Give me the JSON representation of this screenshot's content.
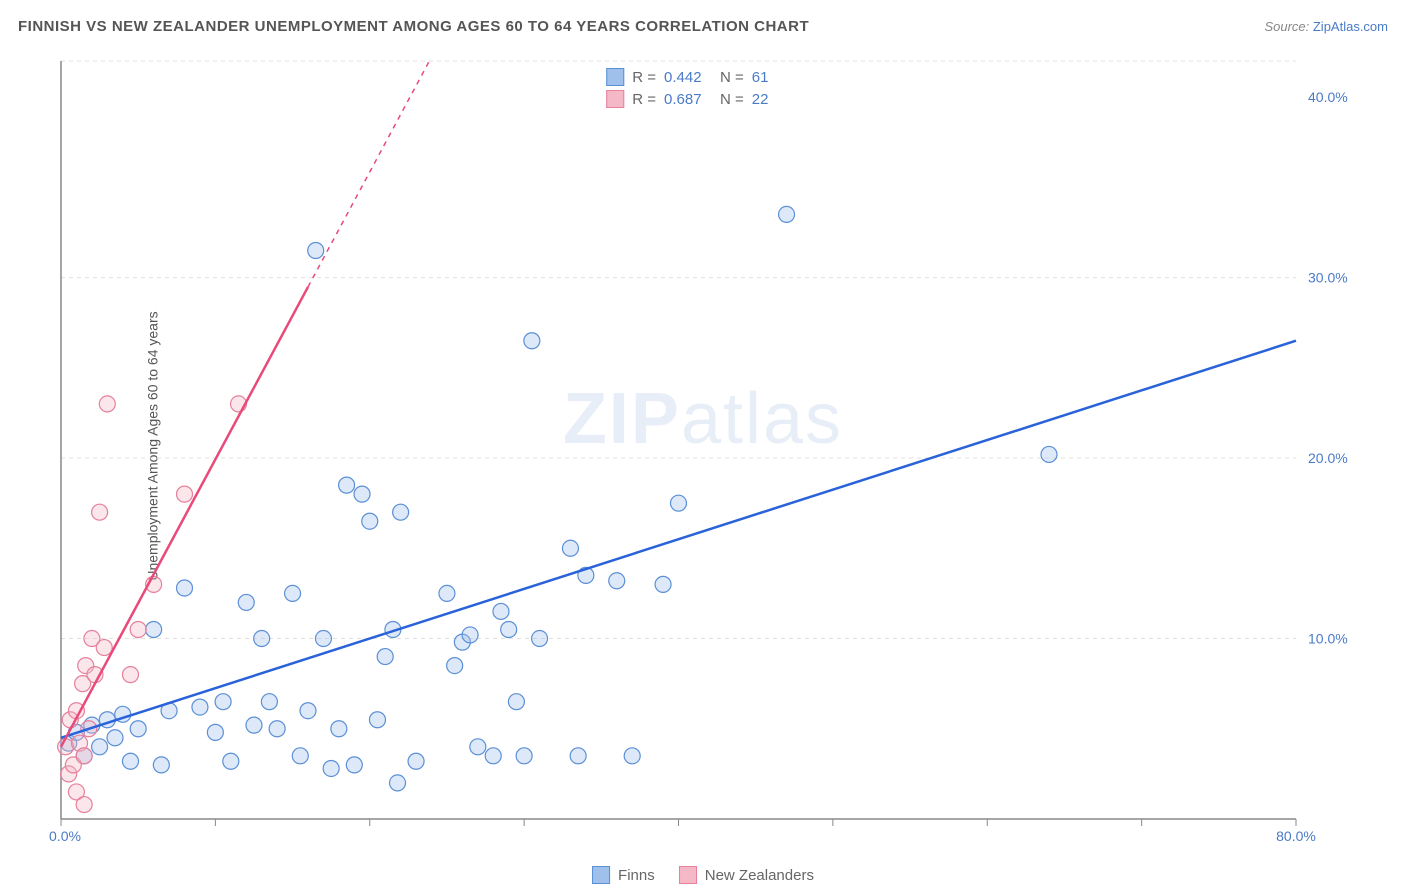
{
  "title": "FINNISH VS NEW ZEALANDER UNEMPLOYMENT AMONG AGES 60 TO 64 YEARS CORRELATION CHART",
  "source_prefix": "Source: ",
  "source_name": "ZipAtlas.com",
  "ylabel": "Unemployment Among Ages 60 to 64 years",
  "watermark_a": "ZIP",
  "watermark_b": "atlas",
  "chart": {
    "type": "scatter",
    "xmin": 0,
    "xmax": 80,
    "ymin": 0,
    "ymax": 42,
    "y_gridlines": [
      10,
      20,
      30,
      42
    ],
    "y_gridlines_side_labels": [
      {
        "v": 10,
        "label": "10.0%"
      },
      {
        "v": 20,
        "label": "20.0%"
      },
      {
        "v": 30,
        "label": "30.0%"
      },
      {
        "v": 40,
        "label": "40.0%"
      }
    ],
    "x_ticks": [
      0,
      10,
      20,
      30,
      40,
      50,
      60,
      70,
      80
    ],
    "x_left_label": {
      "v": 0,
      "label": "0.0%"
    },
    "x_right_label": {
      "v": 80,
      "label": "80.0%"
    },
    "marker_radius": 8,
    "grid_color": "#e0e0e0",
    "axis_color": "#888888",
    "background": "#ffffff",
    "series": [
      {
        "name": "Finns",
        "color_fill": "#9fc0ea",
        "color_stroke": "#5b8fd6",
        "trend_color": "#2962d9",
        "trend": {
          "x1": 0,
          "y1": 4.5,
          "x2": 80,
          "y2": 26.5,
          "solid_until_x": 80
        },
        "points": [
          [
            0.5,
            4.2
          ],
          [
            1,
            4.8
          ],
          [
            1.5,
            3.5
          ],
          [
            2,
            5.2
          ],
          [
            2.5,
            4.0
          ],
          [
            3,
            5.5
          ],
          [
            3.5,
            4.5
          ],
          [
            4,
            5.8
          ],
          [
            4.5,
            3.2
          ],
          [
            5,
            5.0
          ],
          [
            6,
            10.5
          ],
          [
            6.5,
            3.0
          ],
          [
            7,
            6.0
          ],
          [
            8,
            12.8
          ],
          [
            9,
            6.2
          ],
          [
            10,
            4.8
          ],
          [
            10.5,
            6.5
          ],
          [
            11,
            3.2
          ],
          [
            12,
            12.0
          ],
          [
            12.5,
            5.2
          ],
          [
            13,
            10.0
          ],
          [
            13.5,
            6.5
          ],
          [
            14,
            5.0
          ],
          [
            15,
            12.5
          ],
          [
            15.5,
            3.5
          ],
          [
            16,
            6.0
          ],
          [
            16.5,
            31.5
          ],
          [
            17,
            10.0
          ],
          [
            17.5,
            2.8
          ],
          [
            18,
            5.0
          ],
          [
            18.5,
            18.5
          ],
          [
            19,
            3.0
          ],
          [
            19.5,
            18.0
          ],
          [
            20,
            16.5
          ],
          [
            20.5,
            5.5
          ],
          [
            21,
            9.0
          ],
          [
            21.5,
            10.5
          ],
          [
            21.8,
            2.0
          ],
          [
            22,
            17.0
          ],
          [
            23,
            3.2
          ],
          [
            25,
            12.5
          ],
          [
            25.5,
            8.5
          ],
          [
            26,
            9.8
          ],
          [
            26.5,
            10.2
          ],
          [
            27,
            4.0
          ],
          [
            28,
            3.5
          ],
          [
            28.5,
            11.5
          ],
          [
            29,
            10.5
          ],
          [
            29.5,
            6.5
          ],
          [
            30,
            3.5
          ],
          [
            30.5,
            26.5
          ],
          [
            31,
            10.0
          ],
          [
            33,
            15.0
          ],
          [
            33.5,
            3.5
          ],
          [
            34,
            13.5
          ],
          [
            36,
            13.2
          ],
          [
            37,
            3.5
          ],
          [
            39,
            13.0
          ],
          [
            40,
            17.5
          ],
          [
            47,
            33.5
          ],
          [
            64,
            20.2
          ]
        ]
      },
      {
        "name": "New Zealanders",
        "color_fill": "#f4b8c6",
        "color_stroke": "#e6809b",
        "trend_color": "#e84a7a",
        "trend": {
          "x1": 0,
          "y1": 4.0,
          "x2": 27,
          "y2": 47,
          "solid_until_x": 16
        },
        "points": [
          [
            0.3,
            4.0
          ],
          [
            0.5,
            2.5
          ],
          [
            0.6,
            5.5
          ],
          [
            0.8,
            3.0
          ],
          [
            1.0,
            6.0
          ],
          [
            1.2,
            4.2
          ],
          [
            1.4,
            7.5
          ],
          [
            1.5,
            3.5
          ],
          [
            1.6,
            8.5
          ],
          [
            1.8,
            5.0
          ],
          [
            2.0,
            10.0
          ],
          [
            2.2,
            8.0
          ],
          [
            2.5,
            17.0
          ],
          [
            2.8,
            9.5
          ],
          [
            3.0,
            23.0
          ],
          [
            4.5,
            8.0
          ],
          [
            5.0,
            10.5
          ],
          [
            6.0,
            13.0
          ],
          [
            8.0,
            18.0
          ],
          [
            11.5,
            23.0
          ],
          [
            1.0,
            1.5
          ],
          [
            1.5,
            0.8
          ]
        ]
      }
    ]
  },
  "legend_top": [
    {
      "swatch_fill": "#9fc0ea",
      "swatch_stroke": "#5b8fd6",
      "r_label": "R =",
      "r_value": "0.442",
      "n_label": "N =",
      "n_value": "61"
    },
    {
      "swatch_fill": "#f4b8c6",
      "swatch_stroke": "#e6809b",
      "r_label": "R =",
      "r_value": "0.687",
      "n_label": "N =",
      "n_value": "22"
    }
  ],
  "legend_bottom": [
    {
      "swatch_fill": "#9fc0ea",
      "swatch_stroke": "#5b8fd6",
      "label": "Finns"
    },
    {
      "swatch_fill": "#f4b8c6",
      "swatch_stroke": "#e6809b",
      "label": "New Zealanders"
    }
  ]
}
